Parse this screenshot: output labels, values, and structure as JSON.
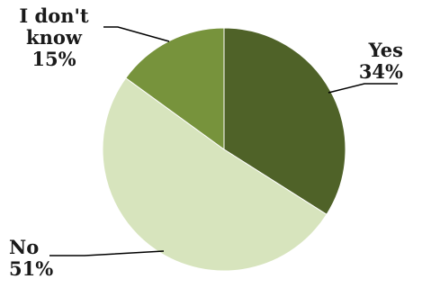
{
  "chart_data": {
    "type": "pie",
    "title": "",
    "slices": [
      {
        "label": "Yes",
        "value": 34,
        "display": "34%",
        "color": "#4f6228"
      },
      {
        "label": "No",
        "value": 51,
        "display": "51%",
        "color": "#d7e4bd"
      },
      {
        "label": "I don't know",
        "value": 15,
        "display": "15%",
        "color": "#77933c"
      }
    ],
    "legend": "none",
    "data_labels": "outside-with-leader-lines"
  },
  "labels": {
    "yes": {
      "name": "Yes",
      "pct": "34%"
    },
    "no": {
      "name": "No",
      "pct": "51%"
    },
    "idk": {
      "line1": "I don't",
      "line2": "know",
      "pct": "15%"
    }
  }
}
